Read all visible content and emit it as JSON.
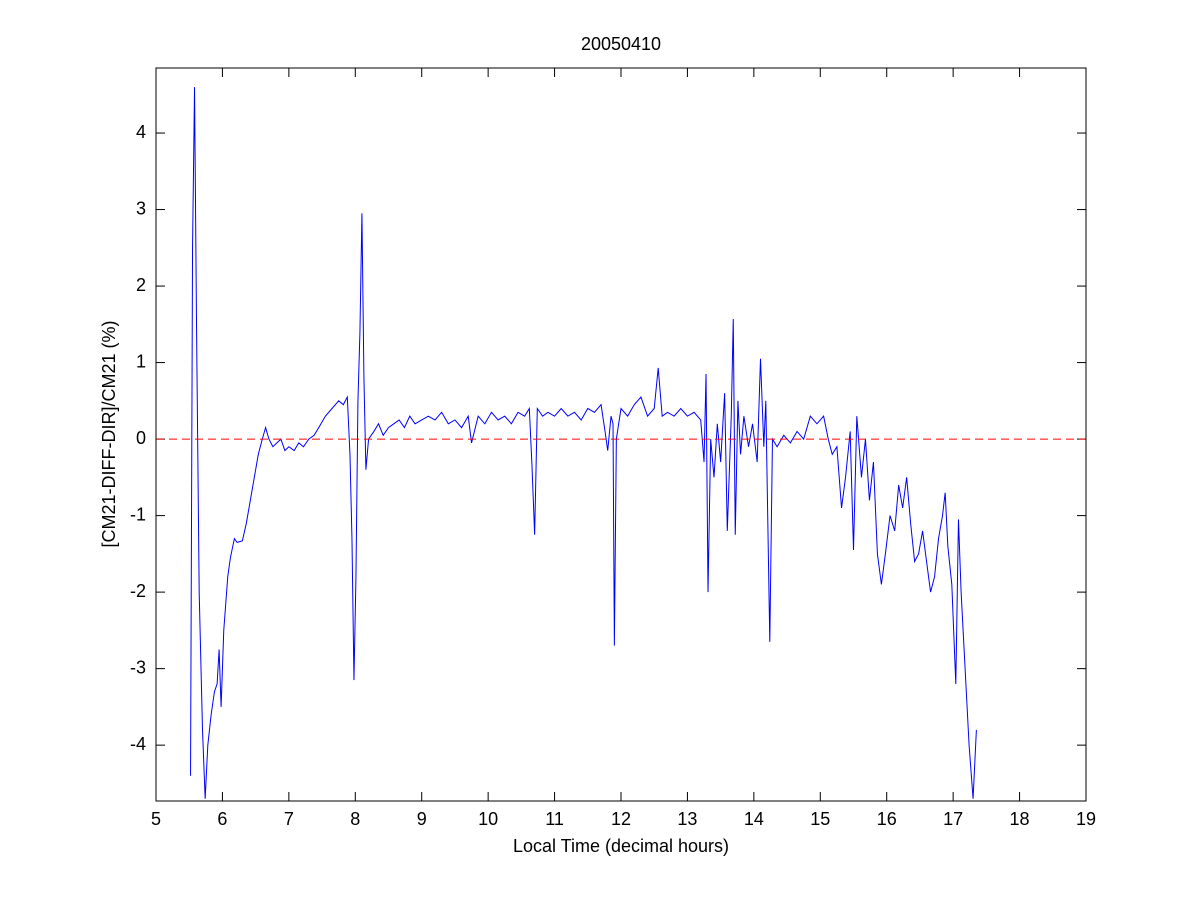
{
  "chart_data": {
    "type": "line",
    "title": "20050410",
    "x_label": "Local Time (decimal hours)",
    "y_label": "[CM21-DIFF-DIR]/CM21 (%)",
    "xlim": [
      5,
      19
    ],
    "ylim": [
      -4.73,
      4.85
    ],
    "xticks": [
      5,
      6,
      7,
      8,
      9,
      10,
      11,
      12,
      13,
      14,
      15,
      16,
      17,
      18,
      19
    ],
    "yticks": [
      -4,
      -3,
      -2,
      -1,
      0,
      1,
      2,
      3,
      4
    ],
    "grid": false,
    "series": [
      {
        "color": "#0000ff",
        "dash": false,
        "x": [
          5.52,
          5.55,
          5.58,
          5.61,
          5.65,
          5.7,
          5.74,
          5.78,
          5.83,
          5.88,
          5.92,
          5.95,
          5.98,
          6.02,
          6.08,
          6.12,
          6.18,
          6.22,
          6.3,
          6.36,
          6.42,
          6.48,
          6.54,
          6.6,
          6.65,
          6.7,
          6.76,
          6.82,
          6.88,
          6.94,
          7,
          7.08,
          7.15,
          7.22,
          7.3,
          7.38,
          7.45,
          7.55,
          7.65,
          7.75,
          7.82,
          7.88,
          7.92,
          7.95,
          7.98,
          8.01,
          8.04,
          8.07,
          8.1,
          8.13,
          8.16,
          8.2,
          8.28,
          8.35,
          8.42,
          8.5,
          8.58,
          8.66,
          8.74,
          8.82,
          8.9,
          9,
          9.1,
          9.2,
          9.3,
          9.4,
          9.5,
          9.6,
          9.7,
          9.75,
          9.85,
          9.95,
          10.05,
          10.15,
          10.25,
          10.35,
          10.45,
          10.55,
          10.62,
          10.66,
          10.7,
          10.74,
          10.82,
          10.9,
          11,
          11.1,
          11.2,
          11.3,
          11.4,
          11.5,
          11.6,
          11.7,
          11.76,
          11.8,
          11.85,
          11.88,
          11.9,
          11.93,
          12,
          12.1,
          12.2,
          12.3,
          12.4,
          12.5,
          12.56,
          12.62,
          12.7,
          12.8,
          12.9,
          13,
          13.1,
          13.2,
          13.25,
          13.28,
          13.31,
          13.35,
          13.4,
          13.45,
          13.5,
          13.56,
          13.6,
          13.66,
          13.69,
          13.72,
          13.76,
          13.8,
          13.85,
          13.92,
          13.98,
          14.05,
          14.1,
          14.15,
          14.18,
          14.24,
          14.28,
          14.35,
          14.45,
          14.55,
          14.65,
          14.75,
          14.85,
          14.95,
          15.05,
          15.12,
          15.18,
          15.25,
          15.32,
          15.38,
          15.45,
          15.5,
          15.55,
          15.62,
          15.68,
          15.74,
          15.8,
          15.86,
          15.92,
          15.98,
          16.05,
          16.12,
          16.18,
          16.24,
          16.3,
          16.36,
          16.42,
          16.48,
          16.54,
          16.6,
          16.66,
          16.72,
          16.78,
          16.84,
          16.88,
          16.92,
          16.98,
          17.04,
          17.08,
          17.12,
          17.18,
          17.24,
          17.3,
          17.35
        ],
        "values": [
          -4.4,
          2.5,
          4.6,
          1.5,
          -2,
          -3.8,
          -4.7,
          -4,
          -3.6,
          -3.3,
          -3.2,
          -2.75,
          -3.5,
          -2.5,
          -1.8,
          -1.55,
          -1.3,
          -1.35,
          -1.33,
          -1.1,
          -0.8,
          -0.5,
          -0.2,
          0,
          0.15,
          0,
          -0.1,
          -0.05,
          0,
          -0.15,
          -0.1,
          -0.15,
          -0.05,
          -0.1,
          0,
          0.05,
          0.15,
          0.3,
          0.4,
          0.5,
          0.45,
          0.55,
          -0.2,
          -1.3,
          -3.15,
          -1.8,
          0.5,
          1.4,
          2.95,
          0.8,
          -0.4,
          0,
          0.1,
          0.2,
          0.05,
          0.15,
          0.2,
          0.25,
          0.15,
          0.3,
          0.2,
          0.25,
          0.3,
          0.25,
          0.35,
          0.2,
          0.25,
          0.15,
          0.3,
          -0.05,
          0.3,
          0.2,
          0.35,
          0.25,
          0.3,
          0.2,
          0.35,
          0.3,
          0.4,
          -0.35,
          -1.25,
          0.4,
          0.3,
          0.35,
          0.3,
          0.4,
          0.3,
          0.35,
          0.25,
          0.4,
          0.35,
          0.45,
          0.1,
          -0.15,
          0.3,
          0.2,
          -2.7,
          0,
          0.4,
          0.3,
          0.45,
          0.55,
          0.3,
          0.4,
          0.93,
          0.3,
          0.35,
          0.3,
          0.4,
          0.3,
          0.35,
          0.25,
          -0.3,
          0.85,
          -2,
          0,
          -0.5,
          0.2,
          -0.3,
          0.6,
          -1.2,
          0.3,
          1.57,
          -1.25,
          0.5,
          -0.2,
          0.3,
          -0.1,
          0.2,
          -0.3,
          1.05,
          -0.1,
          0.5,
          -2.65,
          0,
          -0.1,
          0.05,
          -0.05,
          0.1,
          0,
          0.3,
          0.2,
          0.3,
          0,
          -0.2,
          -0.1,
          -0.9,
          -0.5,
          0.1,
          -1.45,
          0.3,
          -0.5,
          0,
          -0.8,
          -0.3,
          -1.5,
          -1.9,
          -1.5,
          -1,
          -1.2,
          -0.6,
          -0.9,
          -0.5,
          -1.1,
          -1.6,
          -1.5,
          -1.2,
          -1.6,
          -2,
          -1.8,
          -1.3,
          -1,
          -0.7,
          -1.4,
          -1.9,
          -3.2,
          -1.05,
          -2,
          -3,
          -4,
          -4.7,
          -3.8
        ]
      },
      {
        "color": "#ff0000",
        "dash": true,
        "x": [
          5,
          19
        ],
        "values": [
          0,
          0
        ]
      }
    ]
  }
}
